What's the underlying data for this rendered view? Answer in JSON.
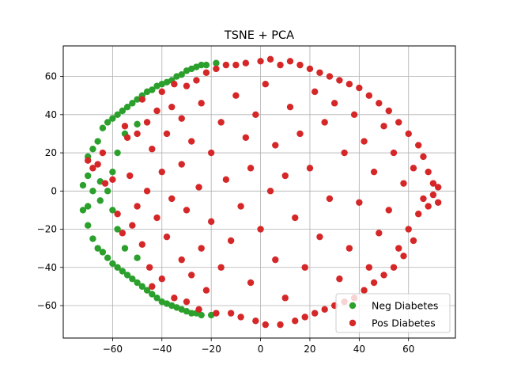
{
  "chart_data": {
    "type": "scatter",
    "title": "TSNE + PCA",
    "xlabel": "",
    "ylabel": "",
    "xlim": [
      -80,
      79
    ],
    "ylim": [
      -77,
      76
    ],
    "xticks": [
      -60,
      -40,
      -20,
      0,
      20,
      40,
      60
    ],
    "yticks": [
      -60,
      -40,
      -20,
      0,
      20,
      40,
      60
    ],
    "xtick_labels": [
      "−60",
      "−40",
      "−20",
      "0",
      "20",
      "40",
      "60"
    ],
    "ytick_labels": [
      "−60",
      "−40",
      "−20",
      "0",
      "20",
      "40",
      "60"
    ],
    "grid": true,
    "legend_position": "lower right",
    "series": [
      {
        "name": "Neg Diabetes",
        "color": "#2ca02c",
        "points": [
          [
            -72,
            3
          ],
          [
            -72,
            -10
          ],
          [
            -70,
            18
          ],
          [
            -70,
            -18
          ],
          [
            -68,
            22
          ],
          [
            -68,
            -25
          ],
          [
            -66,
            26
          ],
          [
            -66,
            -30
          ],
          [
            -64,
            33
          ],
          [
            -64,
            -32
          ],
          [
            -62,
            36
          ],
          [
            -62,
            -35
          ],
          [
            -60,
            38
          ],
          [
            -60,
            -38
          ],
          [
            -58,
            40
          ],
          [
            -58,
            -40
          ],
          [
            -56,
            42
          ],
          [
            -56,
            -42
          ],
          [
            -54,
            44
          ],
          [
            -54,
            -44
          ],
          [
            -52,
            46
          ],
          [
            -52,
            -46
          ],
          [
            -50,
            48
          ],
          [
            -50,
            -48
          ],
          [
            -48,
            50
          ],
          [
            -48,
            -50
          ],
          [
            -46,
            52
          ],
          [
            -46,
            -52
          ],
          [
            -44,
            53
          ],
          [
            -44,
            -54
          ],
          [
            -42,
            55
          ],
          [
            -42,
            -56
          ],
          [
            -40,
            56
          ],
          [
            -40,
            -58
          ],
          [
            -38,
            57
          ],
          [
            -38,
            -59
          ],
          [
            -36,
            58
          ],
          [
            -36,
            -60
          ],
          [
            -34,
            60
          ],
          [
            -34,
            -61
          ],
          [
            -32,
            61
          ],
          [
            -32,
            -62
          ],
          [
            -30,
            63
          ],
          [
            -30,
            -63
          ],
          [
            -28,
            64
          ],
          [
            -28,
            -64
          ],
          [
            -26,
            65
          ],
          [
            -26,
            -64
          ],
          [
            -24,
            66
          ],
          [
            -24,
            -65
          ],
          [
            -22,
            66
          ],
          [
            -20,
            -65
          ],
          [
            -18,
            67
          ],
          [
            -60,
            10
          ],
          [
            -60,
            -10
          ],
          [
            -58,
            20
          ],
          [
            -58,
            -20
          ],
          [
            -62,
            0
          ],
          [
            -65,
            5
          ],
          [
            -65,
            -5
          ],
          [
            -68,
            0
          ],
          [
            -70,
            8
          ],
          [
            -70,
            -8
          ],
          [
            -55,
            30
          ],
          [
            -55,
            -30
          ],
          [
            -50,
            35
          ],
          [
            -50,
            -35
          ]
        ]
      },
      {
        "name": "Pos Diabetes",
        "color": "#d62728",
        "points": [
          [
            -70,
            16
          ],
          [
            -68,
            12
          ],
          [
            -66,
            14
          ],
          [
            -64,
            20
          ],
          [
            -63,
            4
          ],
          [
            -60,
            6
          ],
          [
            -58,
            -12
          ],
          [
            -56,
            -22
          ],
          [
            -55,
            34
          ],
          [
            -54,
            28
          ],
          [
            -53,
            8
          ],
          [
            -52,
            -18
          ],
          [
            -50,
            30
          ],
          [
            -50,
            -8
          ],
          [
            -48,
            48
          ],
          [
            -48,
            -28
          ],
          [
            -46,
            36
          ],
          [
            -46,
            0
          ],
          [
            -45,
            -40
          ],
          [
            -44,
            22
          ],
          [
            -44,
            -50
          ],
          [
            -42,
            42
          ],
          [
            -42,
            -14
          ],
          [
            -40,
            52
          ],
          [
            -40,
            10
          ],
          [
            -40,
            -46
          ],
          [
            -38,
            30
          ],
          [
            -38,
            -24
          ],
          [
            -36,
            44
          ],
          [
            -36,
            -4
          ],
          [
            -35,
            56
          ],
          [
            -35,
            -56
          ],
          [
            -32,
            38
          ],
          [
            -32,
            14
          ],
          [
            -32,
            -36
          ],
          [
            -30,
            55
          ],
          [
            -30,
            -10
          ],
          [
            -30,
            -58
          ],
          [
            -28,
            26
          ],
          [
            -28,
            -44
          ],
          [
            -26,
            58
          ],
          [
            -25,
            2
          ],
          [
            -25,
            -62
          ],
          [
            -24,
            46
          ],
          [
            -24,
            -30
          ],
          [
            -22,
            62
          ],
          [
            -22,
            -52
          ],
          [
            -20,
            20
          ],
          [
            -20,
            -16
          ],
          [
            -18,
            64
          ],
          [
            -18,
            -64
          ],
          [
            -16,
            36
          ],
          [
            -16,
            -40
          ],
          [
            -14,
            66
          ],
          [
            -14,
            6
          ],
          [
            -12,
            -64
          ],
          [
            -12,
            -26
          ],
          [
            -10,
            50
          ],
          [
            -10,
            66
          ],
          [
            -8,
            -8
          ],
          [
            -8,
            -66
          ],
          [
            -6,
            28
          ],
          [
            -6,
            67
          ],
          [
            -4,
            -48
          ],
          [
            -4,
            12
          ],
          [
            -2,
            -68
          ],
          [
            -2,
            40
          ],
          [
            0,
            68
          ],
          [
            0,
            -20
          ],
          [
            2,
            -70
          ],
          [
            2,
            56
          ],
          [
            4,
            0
          ],
          [
            4,
            69
          ],
          [
            6,
            -36
          ],
          [
            6,
            24
          ],
          [
            8,
            -70
          ],
          [
            8,
            66
          ],
          [
            10,
            -56
          ],
          [
            10,
            8
          ],
          [
            12,
            68
          ],
          [
            12,
            44
          ],
          [
            14,
            -68
          ],
          [
            14,
            -14
          ],
          [
            16,
            66
          ],
          [
            16,
            30
          ],
          [
            18,
            -66
          ],
          [
            18,
            -40
          ],
          [
            20,
            64
          ],
          [
            20,
            12
          ],
          [
            22,
            -64
          ],
          [
            22,
            52
          ],
          [
            24,
            62
          ],
          [
            24,
            -24
          ],
          [
            26,
            -62
          ],
          [
            26,
            36
          ],
          [
            28,
            60
          ],
          [
            28,
            -4
          ],
          [
            30,
            -60
          ],
          [
            30,
            46
          ],
          [
            32,
            58
          ],
          [
            32,
            -46
          ],
          [
            34,
            -58
          ],
          [
            34,
            20
          ],
          [
            36,
            56
          ],
          [
            36,
            -30
          ],
          [
            38,
            -56
          ],
          [
            38,
            40
          ],
          [
            40,
            54
          ],
          [
            40,
            -6
          ],
          [
            42,
            -52
          ],
          [
            42,
            26
          ],
          [
            44,
            50
          ],
          [
            44,
            -40
          ],
          [
            46,
            -48
          ],
          [
            46,
            10
          ],
          [
            48,
            46
          ],
          [
            48,
            -22
          ],
          [
            50,
            -44
          ],
          [
            50,
            34
          ],
          [
            52,
            42
          ],
          [
            52,
            -10
          ],
          [
            54,
            -40
          ],
          [
            54,
            20
          ],
          [
            56,
            36
          ],
          [
            56,
            -30
          ],
          [
            58,
            -34
          ],
          [
            58,
            4
          ],
          [
            60,
            30
          ],
          [
            60,
            -20
          ],
          [
            62,
            -26
          ],
          [
            62,
            12
          ],
          [
            64,
            24
          ],
          [
            64,
            -12
          ],
          [
            66,
            18
          ],
          [
            66,
            -4
          ],
          [
            68,
            10
          ],
          [
            68,
            -8
          ],
          [
            70,
            4
          ],
          [
            70,
            -2
          ],
          [
            72,
            2
          ],
          [
            72,
            -6
          ]
        ]
      }
    ]
  }
}
